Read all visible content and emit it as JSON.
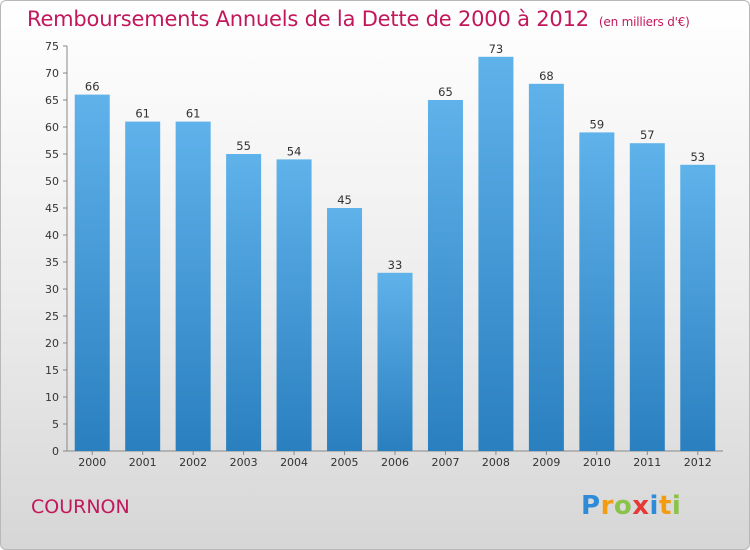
{
  "colors": {
    "title": "#c2185b",
    "bar_light": "#5fb2ea",
    "bar_dark": "#2a7fbf"
  },
  "header": {
    "title": "Remboursements Annuels de la Dette de 2000 à 2012",
    "unit": "(en milliers d'€)"
  },
  "footer": {
    "place": "COURNON",
    "logo": [
      "P",
      "r",
      "o",
      "x",
      "i",
      "t",
      "i"
    ]
  },
  "chart_data": {
    "type": "bar",
    "title": "Remboursements Annuels de la Dette de 2000 à 2012",
    "subtitle": "(en milliers d'€)",
    "xlabel": "",
    "ylabel": "",
    "categories": [
      "2000",
      "2001",
      "2002",
      "2003",
      "2004",
      "2005",
      "2006",
      "2007",
      "2008",
      "2009",
      "2010",
      "2011",
      "2012"
    ],
    "values": [
      66,
      61,
      61,
      55,
      54,
      45,
      33,
      65,
      73,
      68,
      59,
      57,
      53
    ],
    "ylim": [
      0,
      75
    ],
    "yticks": [
      0,
      5,
      10,
      15,
      20,
      25,
      30,
      35,
      40,
      45,
      50,
      55,
      60,
      65,
      70,
      75
    ],
    "grid": false,
    "data_labels": true
  }
}
